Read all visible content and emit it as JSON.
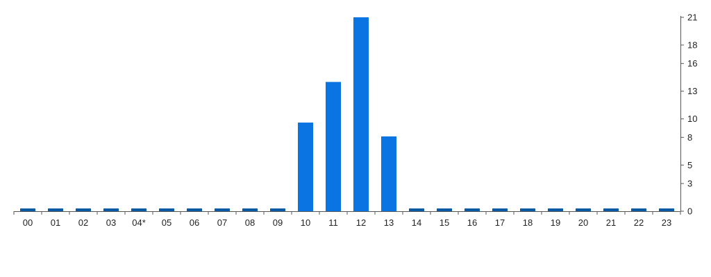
{
  "chart_data": {
    "type": "bar",
    "title": "",
    "xlabel": "",
    "ylabel": "",
    "categories": [
      "00",
      "01",
      "02",
      "03",
      "04*",
      "05",
      "06",
      "07",
      "08",
      "09",
      "10",
      "11",
      "12",
      "13",
      "14",
      "15",
      "16",
      "17",
      "18",
      "19",
      "20",
      "21",
      "22",
      "23"
    ],
    "values": [
      0,
      0,
      0,
      0,
      0,
      0,
      0,
      0,
      0,
      0,
      9.6,
      14,
      21,
      8.1,
      0,
      0,
      0,
      0,
      0,
      0,
      0,
      0,
      0,
      0
    ],
    "ylim": [
      0,
      21
    ],
    "y_ticks": [
      "0",
      "3",
      "5",
      "8",
      "10",
      "13",
      "16",
      "18",
      "21"
    ],
    "y_axis_position": "right",
    "grid": false,
    "legend": "none",
    "colors": {
      "bar": "#0a74e3",
      "zero_bar": "#0b5aa6",
      "axis": "#555555"
    }
  }
}
